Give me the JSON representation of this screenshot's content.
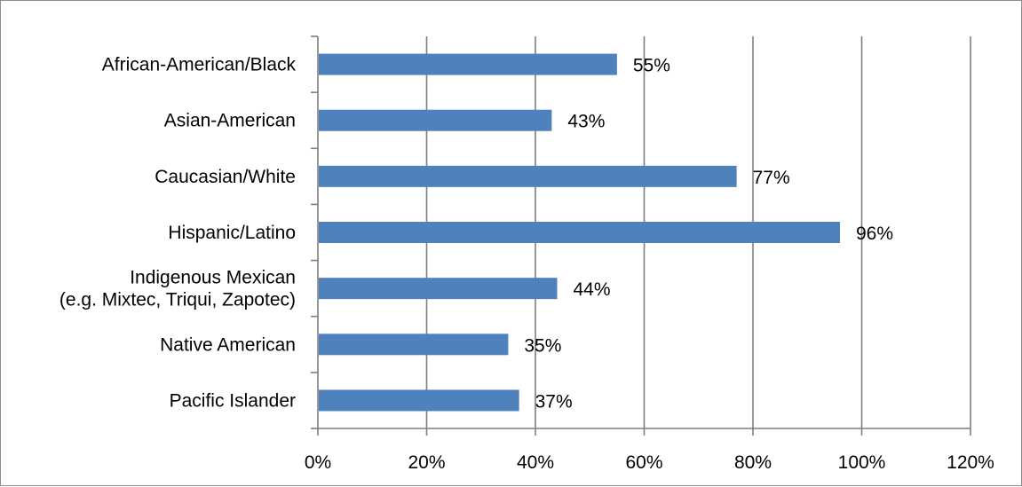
{
  "chart_data": {
    "type": "bar",
    "orientation": "horizontal",
    "categories": [
      [
        "African-American/Black"
      ],
      [
        "Asian-American"
      ],
      [
        "Caucasian/White"
      ],
      [
        "Hispanic/Latino"
      ],
      [
        "Indigenous Mexican",
        "(e.g. Mixtec, Triqui, Zapotec)"
      ],
      [
        "Native American"
      ],
      [
        "Pacific Islander"
      ]
    ],
    "values": [
      55,
      43,
      77,
      96,
      44,
      35,
      37
    ],
    "data_labels": [
      "55%",
      "43%",
      "77%",
      "96%",
      "44%",
      "35%",
      "37%"
    ],
    "x_ticks": [
      0,
      20,
      40,
      60,
      80,
      100,
      120
    ],
    "x_tick_labels": [
      "0%",
      "20%",
      "40%",
      "60%",
      "80%",
      "100%",
      "120%"
    ],
    "xlim": [
      0,
      120
    ],
    "grid": "vertical",
    "legend": "none",
    "bar_color": "#4F81BD",
    "grid_color": "#7f7f7f",
    "title": "",
    "xlabel": "",
    "ylabel": ""
  }
}
